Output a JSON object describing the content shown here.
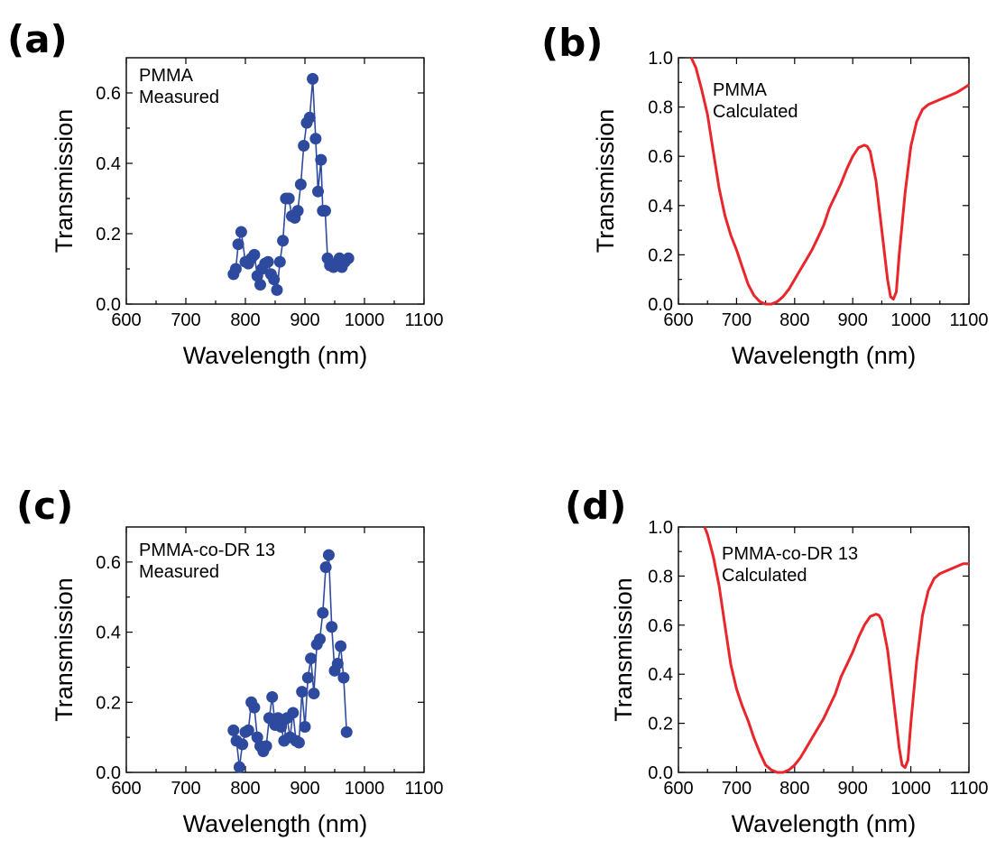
{
  "chart_data": [
    {
      "id": "a",
      "panel_label": "(a)",
      "type": "line",
      "marker": "circle",
      "color": "#2e4a9e",
      "xlabel": "Wavelength (nm)",
      "ylabel": "Transmission",
      "xlim": [
        600,
        1100
      ],
      "ylim": [
        0,
        0.7
      ],
      "xticks": [
        600,
        700,
        800,
        900,
        1000,
        1100
      ],
      "yticks": [
        0.0,
        0.2,
        0.4,
        0.6
      ],
      "ytick_labels": [
        "0.0",
        "0.2",
        "0.4",
        "0.6"
      ],
      "annotations": [
        "PMMA",
        "Measured"
      ],
      "series": [
        {
          "x": [
            780,
            784,
            788,
            793,
            800,
            805,
            810,
            815,
            820,
            825,
            828,
            833,
            838,
            843,
            848,
            853,
            858,
            863,
            868,
            873,
            878,
            883,
            888,
            893,
            898,
            903,
            908,
            913,
            918,
            922,
            927,
            930,
            934,
            938,
            942,
            948,
            953,
            958,
            962,
            967,
            973
          ],
          "y": [
            0.085,
            0.1,
            0.17,
            0.205,
            0.12,
            0.115,
            0.13,
            0.14,
            0.08,
            0.055,
            0.1,
            0.115,
            0.12,
            0.085,
            0.07,
            0.04,
            0.12,
            0.18,
            0.3,
            0.3,
            0.25,
            0.245,
            0.265,
            0.34,
            0.45,
            0.515,
            0.53,
            0.64,
            0.47,
            0.32,
            0.41,
            0.265,
            0.265,
            0.13,
            0.11,
            0.105,
            0.115,
            0.13,
            0.105,
            0.12,
            0.13
          ]
        }
      ]
    },
    {
      "id": "b",
      "panel_label": "(b)",
      "type": "line",
      "color": "#e8262b",
      "xlabel": "Wavelength (nm)",
      "ylabel": "Transmission",
      "xlim": [
        600,
        1100
      ],
      "ylim": [
        0,
        1.0
      ],
      "xticks": [
        600,
        700,
        800,
        900,
        1000,
        1100
      ],
      "yticks": [
        0.0,
        0.2,
        0.4,
        0.6,
        0.8,
        1.0
      ],
      "ytick_labels": [
        "0.0",
        "0.2",
        "0.4",
        "0.6",
        "0.8",
        "1.0"
      ],
      "annotations": [
        "PMMA",
        "Calculated"
      ],
      "series": [
        {
          "x": [
            622,
            630,
            640,
            650,
            660,
            670,
            680,
            690,
            700,
            710,
            720,
            730,
            740,
            750,
            760,
            770,
            780,
            790,
            800,
            810,
            820,
            830,
            840,
            850,
            860,
            870,
            880,
            890,
            900,
            910,
            920,
            925,
            930,
            940,
            950,
            960,
            965,
            970,
            975,
            980,
            990,
            1000,
            1010,
            1020,
            1030,
            1040,
            1050,
            1060,
            1070,
            1080,
            1090,
            1100
          ],
          "y": [
            1.0,
            0.96,
            0.87,
            0.77,
            0.62,
            0.47,
            0.36,
            0.28,
            0.22,
            0.15,
            0.08,
            0.035,
            0.01,
            0.0,
            0.0,
            0.01,
            0.03,
            0.06,
            0.1,
            0.14,
            0.18,
            0.22,
            0.27,
            0.32,
            0.39,
            0.44,
            0.49,
            0.55,
            0.6,
            0.635,
            0.645,
            0.64,
            0.62,
            0.5,
            0.3,
            0.1,
            0.03,
            0.02,
            0.05,
            0.2,
            0.45,
            0.64,
            0.74,
            0.79,
            0.81,
            0.82,
            0.83,
            0.84,
            0.85,
            0.86,
            0.875,
            0.89
          ]
        }
      ]
    },
    {
      "id": "c",
      "panel_label": "(c)",
      "type": "line",
      "marker": "circle",
      "color": "#2e4a9e",
      "xlabel": "Wavelength (nm)",
      "ylabel": "Transmission",
      "xlim": [
        600,
        1100
      ],
      "ylim": [
        0,
        0.7
      ],
      "xticks": [
        600,
        700,
        800,
        900,
        1000,
        1100
      ],
      "yticks": [
        0.0,
        0.2,
        0.4,
        0.6
      ],
      "ytick_labels": [
        "0.0",
        "0.2",
        "0.4",
        "0.6"
      ],
      "annotations": [
        "PMMA-co-DR 13",
        "Measured"
      ],
      "series": [
        {
          "x": [
            780,
            785,
            790,
            795,
            800,
            805,
            810,
            815,
            820,
            825,
            830,
            835,
            840,
            845,
            850,
            855,
            860,
            865,
            870,
            875,
            880,
            885,
            890,
            895,
            900,
            905,
            910,
            915,
            920,
            925,
            930,
            935,
            940,
            945,
            950,
            955,
            960,
            965,
            970
          ],
          "y": [
            0.12,
            0.09,
            0.015,
            0.08,
            0.115,
            0.12,
            0.2,
            0.185,
            0.1,
            0.075,
            0.06,
            0.075,
            0.155,
            0.215,
            0.135,
            0.155,
            0.13,
            0.09,
            0.155,
            0.1,
            0.17,
            0.09,
            0.085,
            0.23,
            0.13,
            0.27,
            0.325,
            0.225,
            0.365,
            0.38,
            0.455,
            0.585,
            0.62,
            0.415,
            0.29,
            0.31,
            0.36,
            0.27,
            0.115
          ]
        }
      ]
    },
    {
      "id": "d",
      "panel_label": "(d)",
      "type": "line",
      "color": "#e8262b",
      "xlabel": "Wavelength (nm)",
      "ylabel": "Transmission",
      "xlim": [
        600,
        1100
      ],
      "ylim": [
        0,
        1.0
      ],
      "xticks": [
        600,
        700,
        800,
        900,
        1000,
        1100
      ],
      "yticks": [
        0.0,
        0.2,
        0.4,
        0.6,
        0.8,
        1.0
      ],
      "ytick_labels": [
        "0.0",
        "0.2",
        "0.4",
        "0.6",
        "0.8",
        "1.0"
      ],
      "annotations": [
        "PMMA-co-DR 13",
        "Calculated"
      ],
      "series": [
        {
          "x": [
            645,
            650,
            660,
            670,
            680,
            690,
            700,
            710,
            720,
            730,
            740,
            750,
            760,
            770,
            780,
            790,
            800,
            810,
            820,
            830,
            840,
            850,
            860,
            870,
            880,
            890,
            900,
            910,
            920,
            930,
            940,
            945,
            950,
            960,
            970,
            980,
            985,
            990,
            995,
            1000,
            1010,
            1020,
            1030,
            1040,
            1050,
            1060,
            1070,
            1080,
            1090,
            1100
          ],
          "y": [
            1.0,
            0.97,
            0.88,
            0.76,
            0.6,
            0.44,
            0.34,
            0.27,
            0.21,
            0.14,
            0.08,
            0.03,
            0.01,
            0.0,
            0.0,
            0.01,
            0.03,
            0.06,
            0.1,
            0.14,
            0.18,
            0.22,
            0.27,
            0.32,
            0.39,
            0.44,
            0.49,
            0.55,
            0.6,
            0.635,
            0.645,
            0.64,
            0.62,
            0.5,
            0.3,
            0.1,
            0.03,
            0.02,
            0.05,
            0.2,
            0.45,
            0.64,
            0.74,
            0.79,
            0.81,
            0.82,
            0.83,
            0.84,
            0.85,
            0.85
          ]
        }
      ]
    }
  ]
}
